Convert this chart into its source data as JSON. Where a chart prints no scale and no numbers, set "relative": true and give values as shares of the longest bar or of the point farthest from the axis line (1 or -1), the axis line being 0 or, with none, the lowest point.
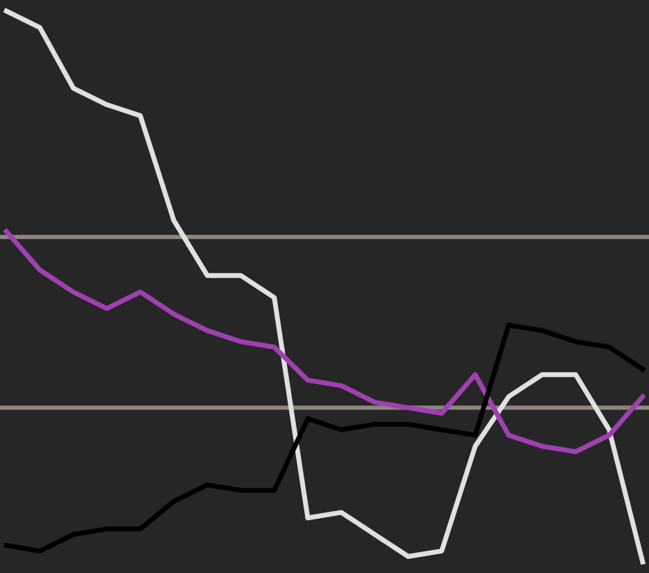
{
  "chart_data": {
    "type": "line",
    "relative": true,
    "categories": [
      null,
      null,
      null,
      null,
      null,
      null,
      null,
      null,
      null,
      null,
      null,
      null,
      null,
      null,
      null,
      null,
      null,
      null,
      null,
      null
    ],
    "series": [
      {
        "color": "#e0e0e0",
        "values": [
          1.0,
          0.97,
          0.86,
          0.83,
          0.81,
          0.62,
          0.52,
          0.52,
          0.48,
          0.08,
          0.09,
          0.05,
          0.01,
          0.02,
          0.21,
          0.3,
          0.34,
          0.34,
          0.24,
          0.0
        ]
      },
      {
        "color": "#a040b0",
        "values": [
          0.6,
          0.53,
          0.49,
          0.46,
          0.49,
          0.45,
          0.42,
          0.4,
          0.39,
          0.33,
          0.32,
          0.29,
          0.28,
          0.27,
          0.34,
          0.23,
          0.21,
          0.2,
          0.23,
          0.3
        ]
      },
      {
        "color": "#000000",
        "values": [
          0.03,
          0.02,
          0.05,
          0.06,
          0.06,
          0.11,
          0.14,
          0.13,
          0.13,
          0.26,
          0.24,
          0.25,
          0.25,
          0.24,
          0.23,
          0.43,
          0.42,
          0.4,
          0.39,
          0.35
        ]
      }
    ],
    "ref_lines": [
      {
        "axis": "y",
        "value": 0.59,
        "color": "#8a8680"
      },
      {
        "axis": "y",
        "value": 0.28,
        "color": "#8a8680"
      }
    ],
    "legend": false,
    "marker": "none",
    "line_style": "solid"
  }
}
